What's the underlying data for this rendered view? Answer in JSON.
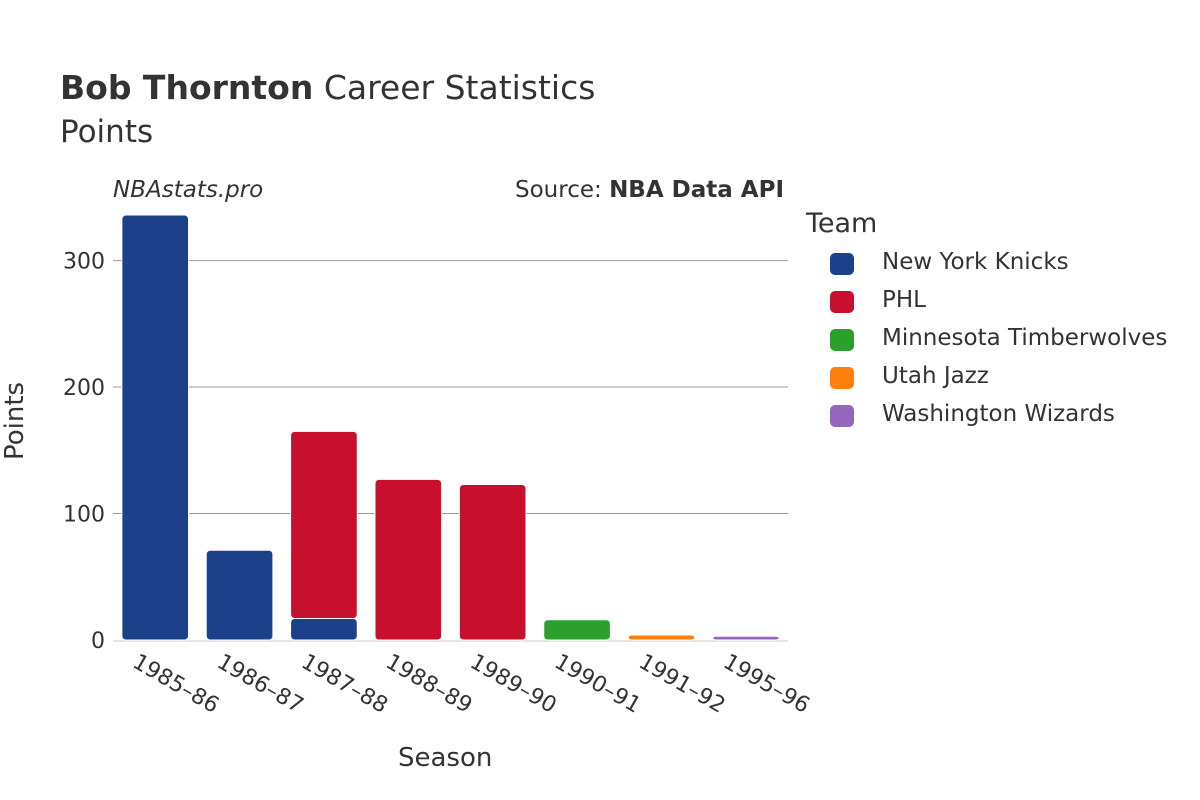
{
  "header": {
    "title_bold": "Bob Thornton",
    "title_rest": " Career Statistics",
    "subtitle": "Points",
    "watermark": "NBAstats.pro",
    "source_prefix": "Source: ",
    "source_bold": "NBA Data API"
  },
  "chart_data": {
    "type": "bar",
    "stacked": true,
    "title": "Bob Thornton Career Statistics",
    "subtitle": "Points",
    "xlabel": "Season",
    "ylabel": "Points",
    "ylim": [
      0,
      340
    ],
    "yticks": [
      0,
      100,
      200,
      300
    ],
    "categories": [
      "1985–86",
      "1986–87",
      "1987–88",
      "1988–89",
      "1989–90",
      "1990–91",
      "1991–92",
      "1995–96"
    ],
    "legend_title": "Team",
    "legend_position": "right",
    "series": [
      {
        "name": "New York Knicks",
        "color": "#1c418a",
        "values": [
          336,
          71,
          17,
          0,
          0,
          0,
          0,
          0
        ]
      },
      {
        "name": "PHL",
        "color": "#c8102e",
        "values": [
          0,
          0,
          148,
          127,
          123,
          0,
          0,
          0
        ]
      },
      {
        "name": "Minnesota Timberwolves",
        "color": "#2ca02c",
        "values": [
          0,
          0,
          0,
          0,
          0,
          16,
          0,
          0
        ]
      },
      {
        "name": "Utah Jazz",
        "color": "#ff7f0e",
        "values": [
          0,
          0,
          0,
          0,
          0,
          0,
          4,
          0
        ]
      },
      {
        "name": "Washington Wizards",
        "color": "#9467bd",
        "values": [
          0,
          0,
          0,
          0,
          0,
          0,
          0,
          3
        ]
      }
    ]
  }
}
